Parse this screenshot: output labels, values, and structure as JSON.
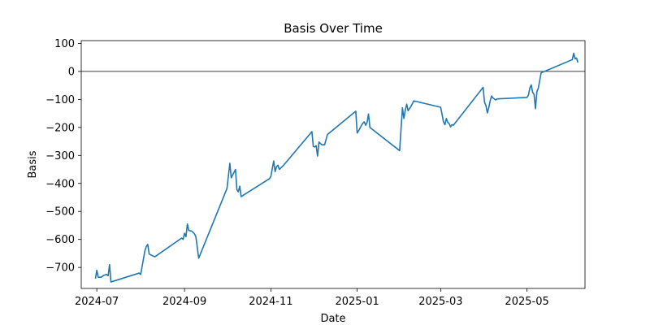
{
  "chart_data": {
    "type": "line",
    "title": "Basis Over Time",
    "xlabel": "Date",
    "ylabel": "Basis",
    "xlim": [
      "2024-06-20",
      "2025-06-11"
    ],
    "ylim": [
      -775,
      110
    ],
    "grid": false,
    "x_ticks": [
      {
        "date": "2024-07-01",
        "label": "2024-07"
      },
      {
        "date": "2024-09-01",
        "label": "2024-09"
      },
      {
        "date": "2024-11-01",
        "label": "2024-11"
      },
      {
        "date": "2025-01-01",
        "label": "2025-01"
      },
      {
        "date": "2025-03-01",
        "label": "2025-03"
      },
      {
        "date": "2025-05-01",
        "label": "2025-05"
      }
    ],
    "y_ticks": [
      {
        "value": 100,
        "label": "100"
      },
      {
        "value": 0,
        "label": "0"
      },
      {
        "value": -100,
        "label": "−100"
      },
      {
        "value": -200,
        "label": "−200"
      },
      {
        "value": -300,
        "label": "−300"
      },
      {
        "value": -400,
        "label": "−400"
      },
      {
        "value": -500,
        "label": "−500"
      },
      {
        "value": -600,
        "label": "−600"
      },
      {
        "value": -700,
        "label": "−700"
      }
    ],
    "reference_line": {
      "y": 0,
      "color": "#000000"
    },
    "series": [
      {
        "color": "#1f77b4",
        "points": [
          [
            "2024-06-30",
            -740
          ],
          [
            "2024-07-01",
            -710
          ],
          [
            "2024-07-02",
            -735
          ],
          [
            "2024-07-04",
            -735
          ],
          [
            "2024-07-06",
            -728
          ],
          [
            "2024-07-08",
            -725
          ],
          [
            "2024-07-09",
            -730
          ],
          [
            "2024-07-10",
            -690
          ],
          [
            "2024-07-11",
            -752
          ],
          [
            "2024-07-31",
            -720
          ],
          [
            "2024-08-01",
            -725
          ],
          [
            "2024-08-04",
            -640
          ],
          [
            "2024-08-05",
            -625
          ],
          [
            "2024-08-06",
            -618
          ],
          [
            "2024-08-07",
            -652
          ],
          [
            "2024-08-08",
            -655
          ],
          [
            "2024-08-11",
            -662
          ],
          [
            "2024-08-30",
            -595
          ],
          [
            "2024-08-31",
            -600
          ],
          [
            "2024-09-01",
            -578
          ],
          [
            "2024-09-02",
            -590
          ],
          [
            "2024-09-03",
            -545
          ],
          [
            "2024-09-04",
            -568
          ],
          [
            "2024-09-06",
            -570
          ],
          [
            "2024-09-08",
            -580
          ],
          [
            "2024-09-09",
            -590
          ],
          [
            "2024-09-11",
            -667
          ],
          [
            "2024-10-01",
            -418
          ],
          [
            "2024-10-03",
            -328
          ],
          [
            "2024-10-04",
            -380
          ],
          [
            "2024-10-06",
            -360
          ],
          [
            "2024-10-07",
            -350
          ],
          [
            "2024-10-08",
            -422
          ],
          [
            "2024-10-09",
            -430
          ],
          [
            "2024-10-10",
            -410
          ],
          [
            "2024-10-11",
            -447
          ],
          [
            "2024-10-31",
            -383
          ],
          [
            "2024-11-01",
            -375
          ],
          [
            "2024-11-03",
            -320
          ],
          [
            "2024-11-04",
            -358
          ],
          [
            "2024-11-05",
            -340
          ],
          [
            "2024-11-06",
            -335
          ],
          [
            "2024-11-07",
            -350
          ],
          [
            "2024-11-10",
            -335
          ],
          [
            "2024-11-30",
            -215
          ],
          [
            "2024-12-01",
            -268
          ],
          [
            "2024-12-02",
            -270
          ],
          [
            "2024-12-03",
            -265
          ],
          [
            "2024-12-04",
            -302
          ],
          [
            "2024-12-05",
            -252
          ],
          [
            "2024-12-07",
            -262
          ],
          [
            "2024-12-09",
            -262
          ],
          [
            "2024-12-11",
            -225
          ],
          [
            "2024-12-31",
            -142
          ],
          [
            "2025-01-01",
            -220
          ],
          [
            "2025-01-02",
            -212
          ],
          [
            "2025-01-04",
            -193
          ],
          [
            "2025-01-05",
            -185
          ],
          [
            "2025-01-06",
            -180
          ],
          [
            "2025-01-07",
            -192
          ],
          [
            "2025-01-08",
            -182
          ],
          [
            "2025-01-09",
            -152
          ],
          [
            "2025-01-10",
            -200
          ],
          [
            "2025-01-31",
            -283
          ],
          [
            "2025-02-01",
            -205
          ],
          [
            "2025-02-02",
            -130
          ],
          [
            "2025-02-03",
            -168
          ],
          [
            "2025-02-04",
            -138
          ],
          [
            "2025-02-05",
            -117
          ],
          [
            "2025-02-06",
            -140
          ],
          [
            "2025-02-08",
            -125
          ],
          [
            "2025-02-10",
            -105
          ],
          [
            "2025-03-01",
            -128
          ],
          [
            "2025-03-03",
            -180
          ],
          [
            "2025-03-04",
            -190
          ],
          [
            "2025-03-05",
            -168
          ],
          [
            "2025-03-06",
            -182
          ],
          [
            "2025-03-07",
            -186
          ],
          [
            "2025-03-08",
            -198
          ],
          [
            "2025-03-09",
            -190
          ],
          [
            "2025-03-10",
            -192
          ],
          [
            "2025-03-31",
            -57
          ],
          [
            "2025-04-01",
            -110
          ],
          [
            "2025-04-02",
            -122
          ],
          [
            "2025-04-03",
            -148
          ],
          [
            "2025-04-04",
            -130
          ],
          [
            "2025-04-05",
            -105
          ],
          [
            "2025-04-06",
            -88
          ],
          [
            "2025-04-07",
            -95
          ],
          [
            "2025-04-09",
            -102
          ],
          [
            "2025-04-10",
            -98
          ],
          [
            "2025-05-01",
            -93
          ],
          [
            "2025-05-02",
            -85
          ],
          [
            "2025-05-03",
            -60
          ],
          [
            "2025-05-04",
            -48
          ],
          [
            "2025-05-05",
            -75
          ],
          [
            "2025-05-06",
            -82
          ],
          [
            "2025-05-07",
            -133
          ],
          [
            "2025-05-08",
            -72
          ],
          [
            "2025-05-09",
            -60
          ],
          [
            "2025-05-11",
            -5
          ],
          [
            "2025-06-02",
            42
          ],
          [
            "2025-06-03",
            65
          ],
          [
            "2025-06-04",
            45
          ],
          [
            "2025-06-05",
            48
          ],
          [
            "2025-06-06",
            32
          ]
        ]
      }
    ]
  }
}
